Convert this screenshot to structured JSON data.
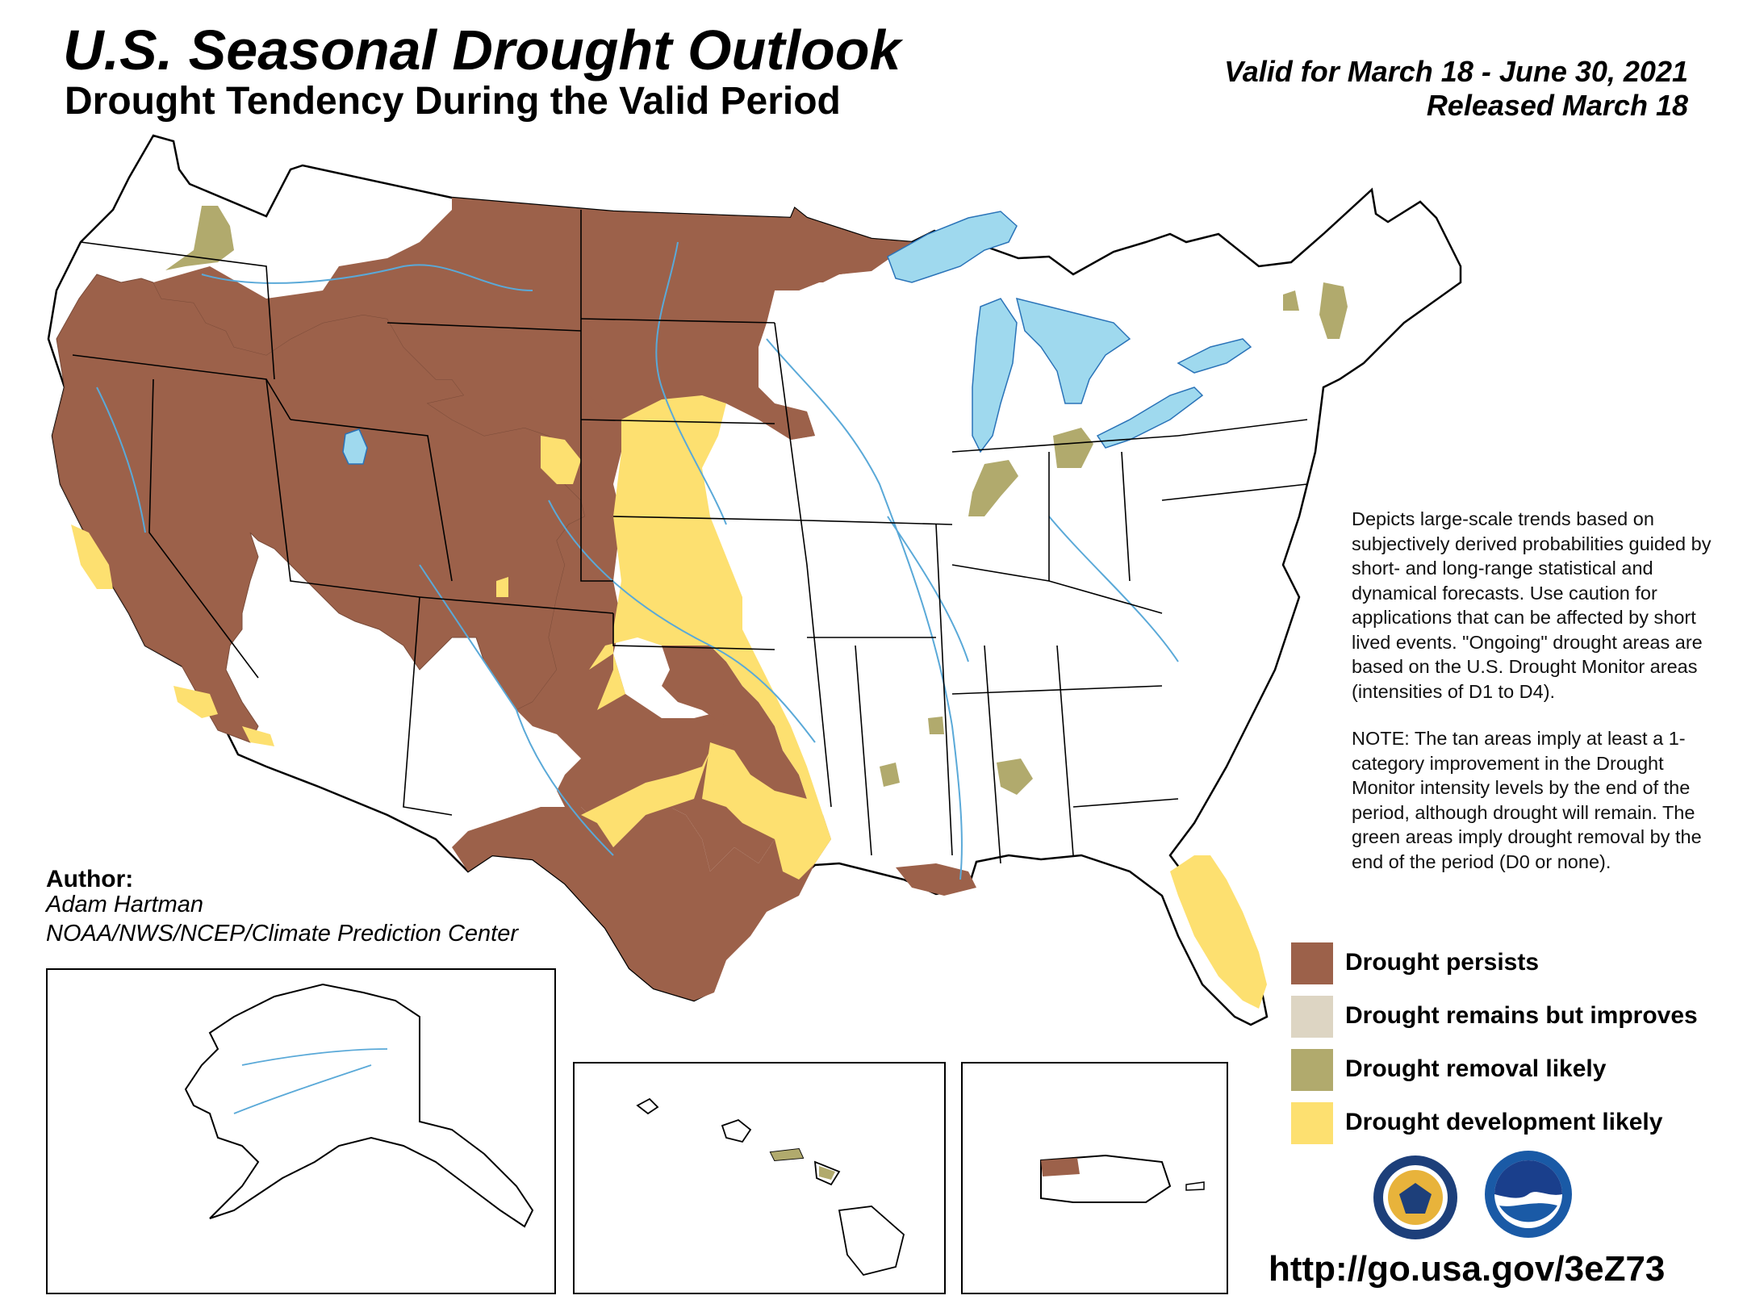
{
  "header": {
    "title": "U.S. Seasonal Drought Outlook",
    "subtitle": "Drought Tendency During the Valid Period",
    "valid": "Valid for March 18 - June 30, 2021",
    "released": "Released March 18"
  },
  "author": {
    "label": "Author:",
    "name": "Adam Hartman",
    "org": "NOAA/NWS/NCEP/Climate Prediction Center"
  },
  "description": {
    "para1": "Depicts large-scale trends based on subjectively derived probabilities guided by short- and long-range statistical and dynamical forecasts. Use caution for applications that can be affected by short lived events. \"Ongoing\" drought areas are based on the U.S. Drought Monitor areas (intensities of D1 to D4).",
    "para2": "NOTE: The tan areas imply at least a 1-category improvement in the Drought Monitor intensity levels by the end of the period, although drought will remain. The green areas imply drought removal by the end of the period (D0 or none)."
  },
  "legend": [
    {
      "label": "Drought persists",
      "color": "#9c614a"
    },
    {
      "label": "Drought remains but improves",
      "color": "#ddd5c3"
    },
    {
      "label": "Drought removal likely",
      "color": "#b1aa6d"
    },
    {
      "label": "Drought development likely",
      "color": "#fde070"
    }
  ],
  "colors": {
    "persists": "#9c614a",
    "improves": "#ddd5c3",
    "removal": "#b1aa6d",
    "development": "#fde070",
    "water": "#9fd9ee",
    "rivers": "#5aa9d8"
  },
  "insets": {
    "alaska": "alaska-inset",
    "hawaii": "hawaii-inset",
    "puerto_rico": "puerto-rico-inset"
  },
  "logos": [
    "doc-seal",
    "noaa-logo"
  ],
  "url": "http://go.usa.gov/3eZ73"
}
